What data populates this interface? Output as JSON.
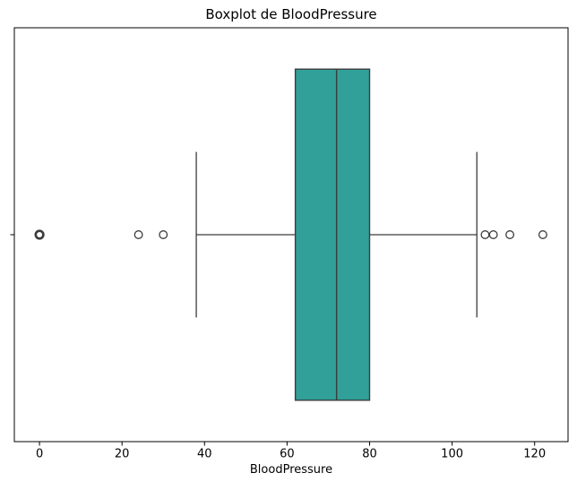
{
  "chart_data": {
    "type": "boxplot",
    "orientation": "horizontal",
    "title": "Boxplot de BloodPressure",
    "xlabel": "BloodPressure",
    "ylabel": "",
    "categories": [
      "BloodPressure"
    ],
    "series": [
      {
        "name": "BloodPressure",
        "whisker_low": 38,
        "q1": 62,
        "median": 72,
        "q3": 80,
        "whisker_high": 106,
        "outliers": [
          0,
          24,
          30,
          108,
          110,
          114,
          122
        ],
        "bold_outliers": [
          0
        ]
      }
    ],
    "xticks": [
      0,
      20,
      40,
      60,
      80,
      100,
      120
    ],
    "xlim": [
      -6.1,
      128.1
    ],
    "grid": false,
    "legend": false,
    "colors": {
      "box_fill": "#30a098",
      "line": "#3c3c3c",
      "frame": "#000000",
      "background": "#ffffff"
    }
  }
}
